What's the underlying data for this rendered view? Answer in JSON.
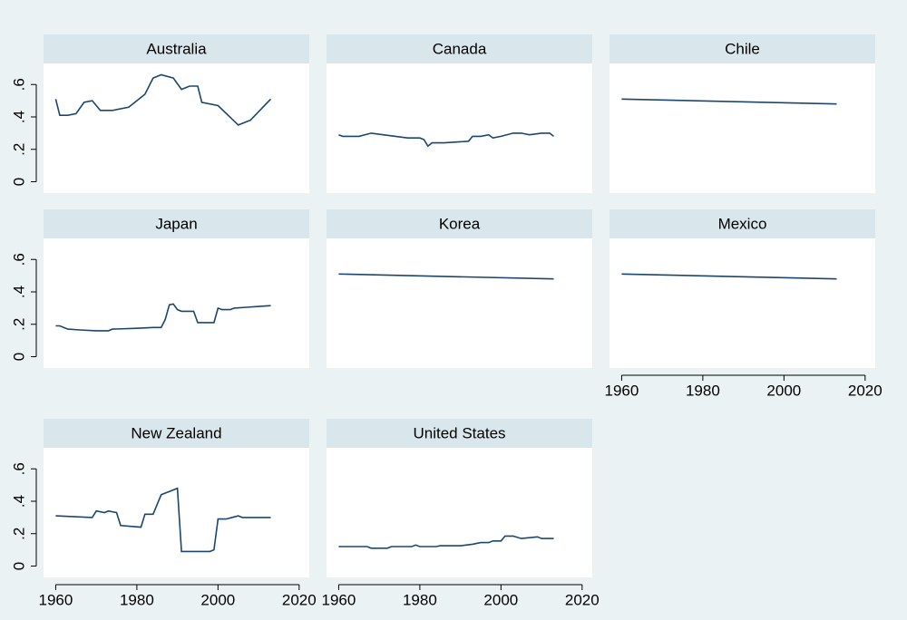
{
  "chart_data": {
    "type": "line",
    "color": "#1a476f",
    "xlim": [
      1957,
      2022.5
    ],
    "xticks": [
      1960,
      1980,
      2000,
      2020
    ],
    "ylim": [
      -0.07,
      0.73
    ],
    "yticks": [
      0,
      {
        "value": 0.2,
        "label": ".2"
      },
      {
        "value": 0.4,
        "label": ".4"
      },
      {
        "value": 0.6,
        "label": ".6"
      }
    ],
    "panels": [
      {
        "title": "Australia",
        "x": [
          1960,
          1961,
          1963,
          1965,
          1967,
          1969,
          1971,
          1974,
          1978,
          1982,
          1984,
          1986,
          1989,
          1991,
          1993,
          1995,
          1996,
          2000,
          2005,
          2008,
          2013
        ],
        "values": [
          0.51,
          0.41,
          0.41,
          0.42,
          0.49,
          0.5,
          0.44,
          0.44,
          0.46,
          0.54,
          0.64,
          0.66,
          0.64,
          0.57,
          0.59,
          0.59,
          0.49,
          0.47,
          0.35,
          0.38,
          0.51
        ]
      },
      {
        "title": "Canada",
        "x": [
          1960,
          1961,
          1965,
          1968,
          1971,
          1974,
          1977,
          1980,
          1981,
          1982,
          1983,
          1986,
          1989,
          1992,
          1993,
          1995,
          1997,
          1998,
          2000,
          2003,
          2005,
          2007,
          2010,
          2012,
          2013
        ],
        "values": [
          0.29,
          0.28,
          0.28,
          0.3,
          0.29,
          0.28,
          0.27,
          0.27,
          0.26,
          0.22,
          0.24,
          0.24,
          0.245,
          0.25,
          0.28,
          0.28,
          0.29,
          0.27,
          0.28,
          0.3,
          0.3,
          0.29,
          0.3,
          0.3,
          0.28
        ]
      },
      {
        "title": "Chile",
        "x": [
          1960,
          2013
        ],
        "values": [
          0.51,
          0.48
        ]
      },
      {
        "title": "Japan",
        "x": [
          1960,
          1961,
          1963,
          1966,
          1970,
          1973,
          1974,
          1980,
          1984,
          1986,
          1987,
          1988,
          1989,
          1990,
          1991,
          1994,
          1995,
          1999,
          2000,
          2001,
          2003,
          2004,
          2007,
          2010,
          2013
        ],
        "values": [
          0.19,
          0.19,
          0.17,
          0.165,
          0.16,
          0.16,
          0.17,
          0.175,
          0.18,
          0.18,
          0.23,
          0.32,
          0.325,
          0.29,
          0.28,
          0.28,
          0.21,
          0.21,
          0.3,
          0.29,
          0.29,
          0.3,
          0.305,
          0.31,
          0.315
        ]
      },
      {
        "title": "Korea",
        "x": [
          1960,
          2013
        ],
        "values": [
          0.51,
          0.48
        ]
      },
      {
        "title": "Mexico",
        "x": [
          1960,
          2013
        ],
        "values": [
          0.51,
          0.48
        ]
      },
      {
        "title": "New Zealand",
        "x": [
          1960,
          1969,
          1970,
          1972,
          1973,
          1975,
          1976,
          1981,
          1982,
          1984,
          1986,
          1988,
          1990,
          1991,
          1998,
          1999,
          2000,
          2002,
          2005,
          2006,
          2013
        ],
        "values": [
          0.31,
          0.3,
          0.34,
          0.33,
          0.34,
          0.33,
          0.25,
          0.24,
          0.32,
          0.32,
          0.44,
          0.46,
          0.48,
          0.09,
          0.09,
          0.1,
          0.29,
          0.29,
          0.31,
          0.3,
          0.3
        ]
      },
      {
        "title": "United States",
        "x": [
          1960,
          1964,
          1967,
          1968,
          1972,
          1973,
          1978,
          1979,
          1980,
          1984,
          1985,
          1990,
          1993,
          1995,
          1997,
          1998,
          2000,
          2001,
          2003,
          2005,
          2009,
          2010,
          2013
        ],
        "values": [
          0.12,
          0.12,
          0.12,
          0.11,
          0.11,
          0.12,
          0.12,
          0.13,
          0.12,
          0.12,
          0.125,
          0.125,
          0.135,
          0.145,
          0.145,
          0.155,
          0.155,
          0.185,
          0.185,
          0.17,
          0.18,
          0.17,
          0.17
        ]
      }
    ]
  }
}
